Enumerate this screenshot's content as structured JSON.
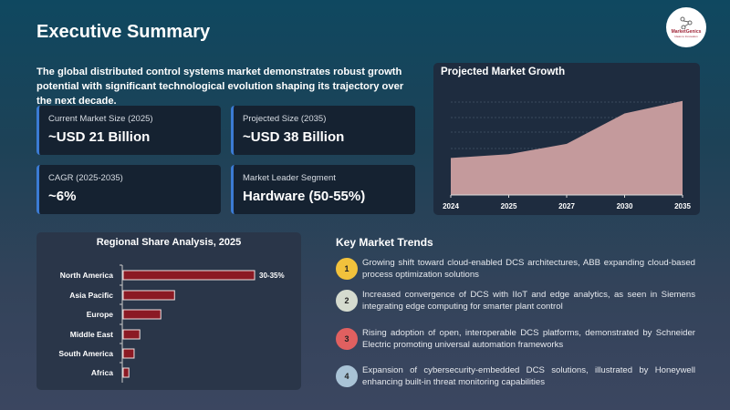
{
  "header": {
    "title": "Executive Summary",
    "intro": "The global distributed control systems market demonstrates robust growth potential with significant technological evolution shaping its trajectory over the next decade.",
    "logo_text": "MarketGenics",
    "logo_sub": "Ideas to Innovation"
  },
  "cards": [
    {
      "label": "Current Market Size (2025)",
      "value": "~USD 21 Billion"
    },
    {
      "label": "Projected Size (2035)",
      "value": "~USD 38 Billion"
    },
    {
      "label": "CAGR (2025-2035)",
      "value": "~6%"
    },
    {
      "label": "Market Leader Segment",
      "value": "Hardware (50-55%)"
    }
  ],
  "chart_data": [
    {
      "type": "area",
      "title": "Projected Market Growth",
      "categories": [
        "2024",
        "2025",
        "2027",
        "2030",
        "2035"
      ],
      "values": [
        19.8,
        21,
        24.3,
        34,
        38
      ],
      "ylim": [
        8,
        42
      ],
      "grid": true,
      "color": "#c49a9c"
    },
    {
      "type": "bar",
      "orientation": "horizontal",
      "title": "Regional Share Analysis, 2025",
      "categories": [
        "North America",
        "Asia Pacific",
        "Europe",
        "Middle East",
        "South America",
        "Africa"
      ],
      "values": [
        32.5,
        12.7,
        9.3,
        4.1,
        2.7,
        1.4
      ],
      "data_labels": [
        "30-35%",
        "",
        "",
        "",
        "",
        ""
      ],
      "color": "#8b1a24"
    }
  ],
  "trends": {
    "title": "Key Market Trends",
    "items": [
      {
        "num": "1",
        "color": "#f2c23c",
        "text": "Growing shift toward cloud-enabled DCS architectures, ABB expanding cloud-based process optimization solutions"
      },
      {
        "num": "2",
        "color": "#d5dbcf",
        "text": "Increased convergence of DCS with IIoT and edge analytics, as seen in Siemens integrating edge computing for smarter plant control"
      },
      {
        "num": "3",
        "color": "#e06060",
        "text": "Rising adoption of open, interoperable DCS platforms, demonstrated by Schneider Electric promoting universal automation frameworks"
      },
      {
        "num": "4",
        "color": "#a9c3d6",
        "text": "Expansion of cybersecurity-embedded DCS solutions, illustrated by Honeywell enhancing built-in threat monitoring capabilities"
      }
    ]
  }
}
